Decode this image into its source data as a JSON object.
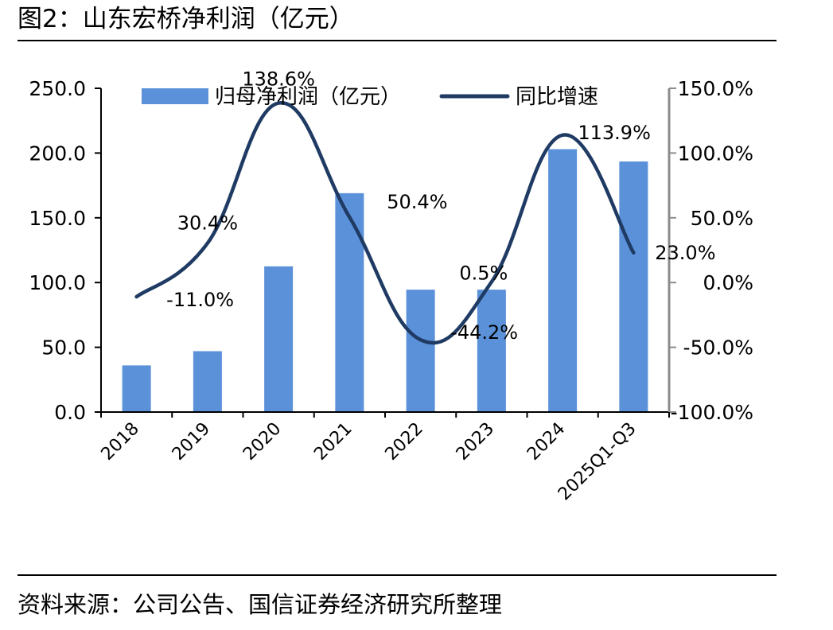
{
  "figure": {
    "title": "图2：山东宏桥净利润（亿元）",
    "source": "资料来源：公司公告、国信证券经济研究所整理"
  },
  "chart_data": {
    "type": "bar",
    "categories": [
      "2018",
      "2019",
      "2020",
      "2021",
      "2022",
      "2023",
      "2024",
      "2025Q1-Q3"
    ],
    "series": [
      {
        "name": "归母净利润（亿元）",
        "type": "bar",
        "axis": "left",
        "values": [
          36.0,
          47.0,
          112.5,
          169.0,
          94.5,
          94.5,
          203.0,
          193.5
        ]
      },
      {
        "name": "同比增速",
        "type": "line",
        "axis": "right",
        "values": [
          -11.0,
          30.4,
          138.6,
          50.4,
          -44.2,
          0.5,
          113.9,
          23.0
        ],
        "labels": [
          "-11.0%",
          "30.4%",
          "138.6%",
          "50.4%",
          "-44.2%",
          "0.5%",
          "113.9%",
          "23.0%"
        ]
      }
    ],
    "y_left": {
      "min": 0,
      "max": 250,
      "step": 50,
      "ticks": [
        "0.0",
        "50.0",
        "100.0",
        "150.0",
        "200.0",
        "250.0"
      ]
    },
    "y_right": {
      "min": -100,
      "max": 150,
      "step": 50,
      "ticks": [
        "-100.0%",
        "-50.0%",
        "0.0%",
        "50.0%",
        "100.0%",
        "150.0%"
      ]
    },
    "grid": false,
    "legend_position": "top",
    "colors": {
      "bar": "#5b91d9",
      "line": "#1f3b63",
      "left_axis": "#000000",
      "right_axis": "#8c8c8c"
    }
  }
}
